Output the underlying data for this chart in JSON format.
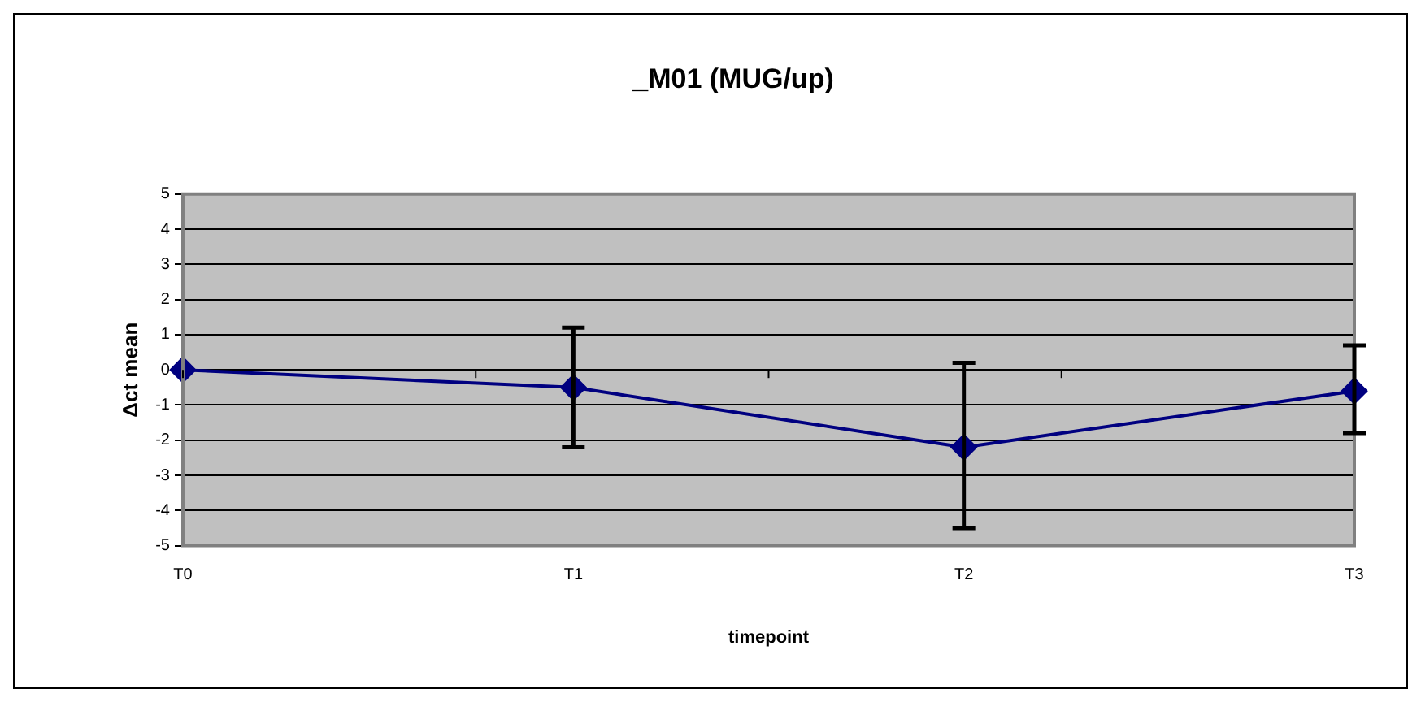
{
  "chart_data": {
    "type": "line",
    "title": "_M01 (MUG/up)",
    "xlabel": "timepoint",
    "ylabel": "Δct mean",
    "categories": [
      "T0",
      "T1",
      "T2",
      "T3"
    ],
    "series": [
      {
        "color": "#000080",
        "values": [
          0,
          -0.5,
          -2.2,
          -0.6
        ],
        "errors": [
          null,
          [
            -2.2,
            1.2
          ],
          [
            -4.5,
            0.2
          ],
          [
            -1.8,
            0.7
          ]
        ]
      }
    ],
    "ylim": [
      -5,
      5
    ],
    "yticks": [
      -5,
      -4,
      -3,
      -2,
      -1,
      0,
      1,
      2,
      3,
      4,
      5
    ],
    "grid": "y",
    "marker": "diamond",
    "legend": false
  }
}
